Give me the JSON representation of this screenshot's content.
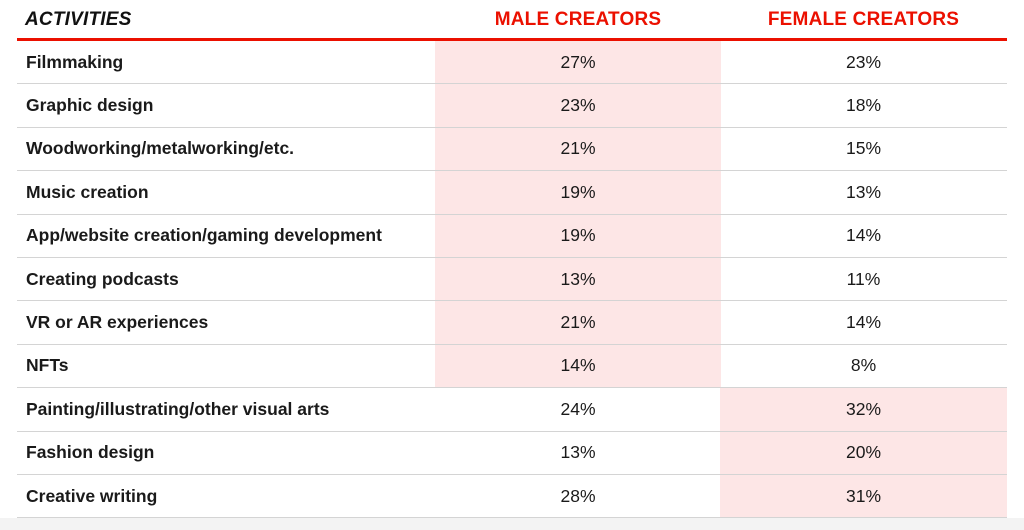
{
  "chart_data": {
    "type": "table",
    "highlight_color": "#fde6e6",
    "accent_color": "#eb1000",
    "columns": [
      "ACTIVITIES",
      "MALE CREATORS",
      "FEMALE CREATORS"
    ],
    "rows": [
      {
        "activity": "Filmmaking",
        "male": "27%",
        "female": "23%",
        "highlight": "male"
      },
      {
        "activity": "Graphic design",
        "male": "23%",
        "female": "18%",
        "highlight": "male"
      },
      {
        "activity": "Woodworking/metalworking/etc.",
        "male": "21%",
        "female": "15%",
        "highlight": "male"
      },
      {
        "activity": "Music creation",
        "male": "19%",
        "female": "13%",
        "highlight": "male"
      },
      {
        "activity": "App/website creation/gaming development",
        "male": "19%",
        "female": "14%",
        "highlight": "male"
      },
      {
        "activity": "Creating podcasts",
        "male": "13%",
        "female": "11%",
        "highlight": "male"
      },
      {
        "activity": "VR or AR experiences",
        "male": "21%",
        "female": "14%",
        "highlight": "male"
      },
      {
        "activity": "NFTs",
        "male": "14%",
        "female": "8%",
        "highlight": "male"
      },
      {
        "activity": "Painting/illustrating/other visual arts",
        "male": "24%",
        "female": "32%",
        "highlight": "female"
      },
      {
        "activity": "Fashion design",
        "male": "13%",
        "female": "20%",
        "highlight": "female"
      },
      {
        "activity": "Creative writing",
        "male": "28%",
        "female": "31%",
        "highlight": "female"
      }
    ]
  }
}
